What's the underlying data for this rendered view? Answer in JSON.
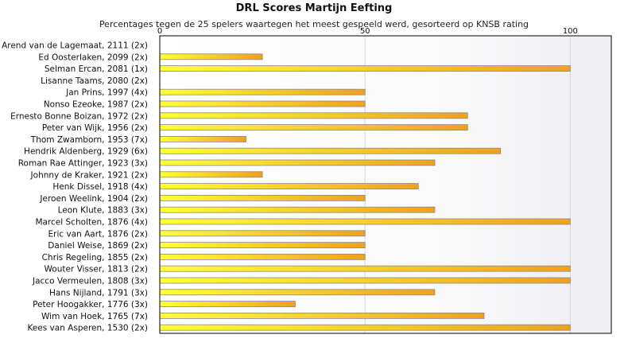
{
  "chart_data": {
    "type": "bar",
    "orientation": "horizontal",
    "title": "DRL Scores Martijn Eefting",
    "subtitle": "Percentages tegen de 25 spelers waartegen het meest gespeeld werd, gesorteerd op KNSB rating",
    "xlim": [
      0,
      110
    ],
    "xticks": [
      "0",
      "50",
      "100"
    ],
    "tick_values": [
      0,
      50,
      100
    ],
    "grid": true,
    "categories": [
      "Arend van de Lagemaat, 2111 (2x)",
      "Ed Oosterlaken, 2099 (2x)",
      "Selman Ercan, 2081 (1x)",
      "Lisanne Taams, 2080 (2x)",
      "Jan Prins, 1997 (4x)",
      "Nonso Ezeoke, 1987 (2x)",
      "Ernesto Bonne Boizan, 1972 (2x)",
      "Peter van Wijk, 1956 (2x)",
      "Thom Zwamborn, 1953 (7x)",
      "Hendrik Aldenberg, 1929 (6x)",
      "Roman Rae Attinger, 1923 (3x)",
      "Johnny de Kraker, 1921 (2x)",
      "Henk Dissel, 1918 (4x)",
      "Jeroen Weelink, 1904 (2x)",
      "Leon Klute, 1883 (3x)",
      "Marcel Scholten, 1876 (4x)",
      "Eric van Aart, 1876 (2x)",
      "Daniel Weise, 1869 (2x)",
      "Chris Regeling, 1855 (2x)",
      "Wouter Visser, 1813 (2x)",
      "Jacco Vermeulen, 1808 (3x)",
      "Hans Nijland, 1791 (3x)",
      "Peter Hoogakker, 1776 (3x)",
      "Wim van Hoek, 1765 (7x)",
      "Kees van Asperen, 1530 (2x)"
    ],
    "values": [
      0,
      25,
      100,
      0,
      50,
      50,
      75,
      75,
      21,
      83,
      67,
      25,
      63,
      50,
      67,
      100,
      50,
      50,
      50,
      100,
      100,
      67,
      33,
      79,
      100
    ],
    "colors": {
      "bar_start": "#ffff33",
      "bar_end": "#f0a020",
      "grid": "#d8d8d8",
      "frame": "#000000"
    }
  }
}
